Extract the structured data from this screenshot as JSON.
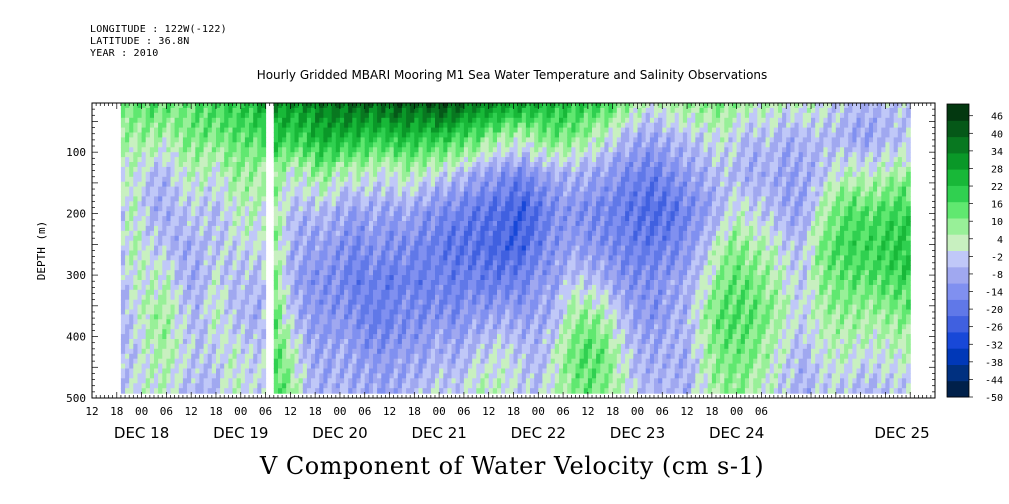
{
  "header": {
    "longitude": "LONGITUDE : 122W(-122)",
    "latitude": "LATITUDE : 36.8N",
    "year": "YEAR : 2010"
  },
  "chart_data": {
    "type": "heatmap",
    "title": "Hourly Gridded MBARI Mooring M1 Sea Water Temperature and Salinity Observations",
    "xlabel": "V Component of Water Velocity (cm s-1)",
    "ylabel": "DEPTH (m)",
    "x_units": "hours (Dec 17 12:00 to Dec 25 ~12:00, 2010)",
    "xlim_hours": [
      0,
      204
    ],
    "ylim": [
      500,
      20
    ],
    "y_ticks": [
      100,
      200,
      300,
      400,
      500
    ],
    "x_hour_tick_labels": [
      "12",
      "18",
      "00",
      "06",
      "12",
      "18",
      "00",
      "06",
      "12",
      "18",
      "00",
      "06",
      "12",
      "18",
      "00",
      "06",
      "12",
      "18",
      "00",
      "06",
      "12",
      "18",
      "00",
      "06",
      "12",
      "18",
      "00",
      "06"
    ],
    "x_day_labels": [
      "DEC 18",
      "DEC 19",
      "DEC 20",
      "DEC 21",
      "DEC 22",
      "DEC 23",
      "DEC 24",
      "DEC 25"
    ],
    "data_extent_hours": [
      7,
      197.5
    ],
    "data_extent_depth": [
      20,
      485
    ],
    "gap_hours": [
      41.5,
      43.5
    ],
    "colorbar": {
      "min": -50,
      "max": 50,
      "labels": [
        "46",
        "40",
        "34",
        "28",
        "22",
        "16",
        "10",
        "4",
        "-2",
        "-8",
        "-14",
        "-20",
        "-26",
        "-32",
        "-38",
        "-44",
        "-50"
      ],
      "colors": [
        "#00204a",
        "#003080",
        "#0038b8",
        "#1848d8",
        "#4060e0",
        "#6078e8",
        "#8090f0",
        "#a0a8f0",
        "#c0c8f8",
        "#c8f0c0",
        "#98f098",
        "#60e870",
        "#30d050",
        "#18b838",
        "#0a9828",
        "#087820",
        "#055818",
        "#033810"
      ]
    },
    "columns": [
      {
        "hour": 7,
        "profile": [
          12,
          8,
          0,
          -2,
          -4,
          -6,
          -8,
          -6,
          -4
        ]
      },
      {
        "hour": 10,
        "profile": [
          14,
          6,
          2,
          4,
          6,
          2,
          -2,
          -4,
          0
        ]
      },
      {
        "hour": 14,
        "profile": [
          16,
          8,
          -4,
          -6,
          -2,
          2,
          6,
          4,
          2
        ]
      },
      {
        "hour": 18,
        "profile": [
          14,
          4,
          -6,
          -8,
          -4,
          4,
          8,
          6,
          4
        ]
      },
      {
        "hour": 22,
        "profile": [
          12,
          10,
          2,
          -4,
          -8,
          -6,
          -2,
          0,
          -4
        ]
      },
      {
        "hour": 26,
        "profile": [
          16,
          12,
          4,
          -2,
          -6,
          -8,
          -6,
          -4,
          -6
        ]
      },
      {
        "hour": 30,
        "profile": [
          18,
          10,
          0,
          -6,
          -4,
          2,
          4,
          -2,
          -6
        ]
      },
      {
        "hour": 34,
        "profile": [
          20,
          14,
          8,
          2,
          -2,
          -6,
          -4,
          2,
          4
        ]
      },
      {
        "hour": 38,
        "profile": [
          22,
          14,
          8,
          4,
          0,
          -4,
          -6,
          -2,
          0
        ]
      },
      {
        "hour": 41,
        "profile": [
          26,
          16,
          6,
          2,
          -2,
          -6,
          -8,
          -4,
          -2
        ]
      },
      {
        "hour": 44,
        "profile": [
          34,
          22,
          10,
          8,
          10,
          12,
          14,
          16,
          18
        ]
      },
      {
        "hour": 48,
        "profile": [
          30,
          18,
          2,
          -4,
          -6,
          -8,
          -2,
          6,
          10
        ]
      },
      {
        "hour": 52,
        "profile": [
          32,
          20,
          4,
          -6,
          -10,
          -12,
          -10,
          -6,
          -4
        ]
      },
      {
        "hour": 56,
        "profile": [
          36,
          26,
          10,
          -4,
          -10,
          -14,
          -12,
          -10,
          -8
        ]
      },
      {
        "hour": 60,
        "profile": [
          38,
          24,
          2,
          -8,
          -12,
          -14,
          -12,
          -8,
          -6
        ]
      },
      {
        "hour": 64,
        "profile": [
          40,
          22,
          4,
          -10,
          -16,
          -18,
          -14,
          -10,
          -8
        ]
      },
      {
        "hour": 68,
        "profile": [
          38,
          18,
          2,
          -8,
          -12,
          -16,
          -18,
          -12,
          -8
        ]
      },
      {
        "hour": 72,
        "profile": [
          40,
          20,
          0,
          -10,
          -14,
          -18,
          -16,
          -12,
          -10
        ]
      },
      {
        "hour": 76,
        "profile": [
          42,
          24,
          6,
          -8,
          -14,
          -16,
          -14,
          -10,
          -6
        ]
      },
      {
        "hour": 80,
        "profile": [
          40,
          20,
          2,
          -12,
          -16,
          -18,
          -14,
          -10,
          -4
        ]
      },
      {
        "hour": 84,
        "profile": [
          44,
          22,
          -2,
          -14,
          -18,
          -16,
          -12,
          -6,
          -2
        ]
      },
      {
        "hour": 88,
        "profile": [
          40,
          18,
          -4,
          -16,
          -20,
          -18,
          -14,
          -8,
          -4
        ]
      },
      {
        "hour": 92,
        "profile": [
          36,
          14,
          -8,
          -18,
          -20,
          -16,
          -10,
          -4,
          2
        ]
      },
      {
        "hour": 96,
        "profile": [
          34,
          10,
          -10,
          -20,
          -22,
          -18,
          -10,
          -2,
          4
        ]
      },
      {
        "hour": 100,
        "profile": [
          30,
          6,
          -14,
          -22,
          -24,
          -18,
          -8,
          0,
          2
        ]
      },
      {
        "hour": 104,
        "profile": [
          28,
          4,
          -16,
          -26,
          -24,
          -16,
          -10,
          -4,
          -2
        ]
      },
      {
        "hour": 108,
        "profile": [
          26,
          8,
          -10,
          -20,
          -18,
          -12,
          -8,
          -6,
          -4
        ]
      },
      {
        "hour": 112,
        "profile": [
          24,
          12,
          -8,
          -14,
          -12,
          -10,
          -6,
          2,
          4
        ]
      },
      {
        "hour": 116,
        "profile": [
          22,
          10,
          -6,
          -12,
          -10,
          -2,
          8,
          12,
          10
        ]
      },
      {
        "hour": 120,
        "profile": [
          20,
          6,
          -8,
          -14,
          -12,
          -4,
          10,
          16,
          14
        ]
      },
      {
        "hour": 124,
        "profile": [
          18,
          2,
          -10,
          -16,
          -14,
          -6,
          6,
          12,
          10
        ]
      },
      {
        "hour": 128,
        "profile": [
          12,
          -4,
          -14,
          -18,
          -16,
          -12,
          -4,
          2,
          4
        ]
      },
      {
        "hour": 132,
        "profile": [
          6,
          -8,
          -16,
          -20,
          -18,
          -14,
          -10,
          -6,
          -4
        ]
      },
      {
        "hour": 136,
        "profile": [
          2,
          -10,
          -18,
          -22,
          -18,
          -14,
          -12,
          -8,
          -6
        ]
      },
      {
        "hour": 140,
        "profile": [
          6,
          -6,
          -14,
          -20,
          -16,
          -10,
          -8,
          -6,
          -6
        ]
      },
      {
        "hour": 144,
        "profile": [
          8,
          -4,
          -10,
          -16,
          -12,
          -8,
          -6,
          -8,
          -8
        ]
      },
      {
        "hour": 148,
        "profile": [
          10,
          -2,
          -8,
          -12,
          -6,
          0,
          6,
          4,
          2
        ]
      },
      {
        "hour": 152,
        "profile": [
          12,
          2,
          -4,
          -6,
          4,
          10,
          14,
          12,
          8
        ]
      },
      {
        "hour": 156,
        "profile": [
          8,
          -2,
          -6,
          2,
          10,
          14,
          16,
          12,
          10
        ]
      },
      {
        "hour": 160,
        "profile": [
          4,
          -6,
          -8,
          -2,
          6,
          12,
          14,
          10,
          6
        ]
      },
      {
        "hour": 164,
        "profile": [
          6,
          -4,
          -6,
          -4,
          4,
          8,
          10,
          6,
          2
        ]
      },
      {
        "hour": 168,
        "profile": [
          2,
          -8,
          -10,
          -8,
          -2,
          2,
          4,
          0,
          -4
        ]
      },
      {
        "hour": 172,
        "profile": [
          4,
          -6,
          -8,
          -10,
          -6,
          -4,
          -2,
          -6,
          -8
        ]
      },
      {
        "hour": 176,
        "profile": [
          2,
          -4,
          -6,
          4,
          10,
          8,
          4,
          0,
          -4
        ]
      },
      {
        "hour": 180,
        "profile": [
          -2,
          -6,
          2,
          12,
          16,
          12,
          8,
          4,
          -2
        ]
      },
      {
        "hour": 184,
        "profile": [
          -4,
          -8,
          4,
          16,
          18,
          14,
          8,
          2,
          -4
        ]
      },
      {
        "hour": 188,
        "profile": [
          -6,
          -10,
          2,
          14,
          18,
          14,
          6,
          0,
          -6
        ]
      },
      {
        "hour": 192,
        "profile": [
          -4,
          -6,
          6,
          16,
          20,
          16,
          8,
          2,
          -4
        ]
      },
      {
        "hour": 197,
        "profile": [
          -2,
          -4,
          8,
          18,
          22,
          18,
          10,
          4,
          -2
        ]
      }
    ]
  }
}
